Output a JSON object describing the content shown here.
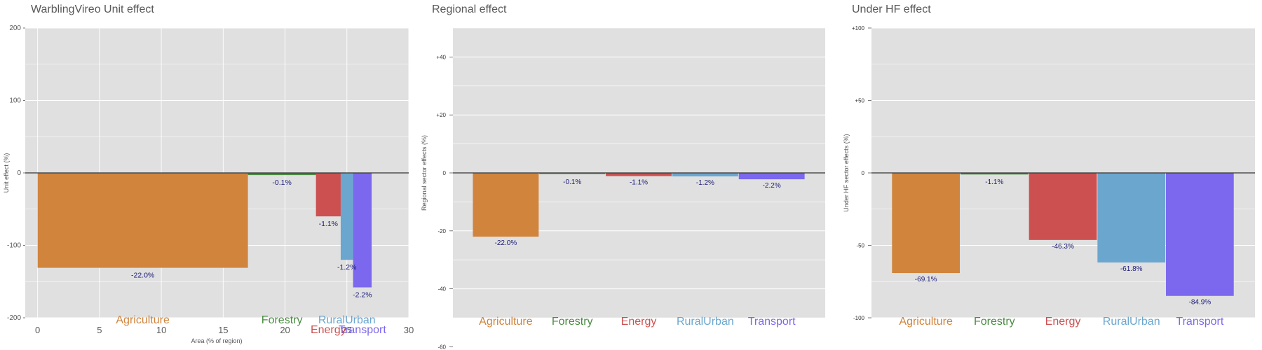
{
  "colors": {
    "Agriculture": "#D0843C",
    "Forestry": "#4A8C42",
    "Energy": "#CC5050",
    "RuralUrban": "#6BA6CF",
    "Transport": "#7B68EE",
    "panel_bg": "#E0E0E0",
    "grid": "#FFFFFF",
    "zero_line": "#333333"
  },
  "chart_data": [
    {
      "type": "bar",
      "variant": "variable-width",
      "title": "WarblingVireo Unit effect",
      "xlabel": "Area (% of region)",
      "ylabel": "Unit effect (%)",
      "xlim": [
        -1,
        30
      ],
      "ylim": [
        -200,
        200
      ],
      "xticks": [
        0,
        5,
        10,
        15,
        20,
        25,
        30
      ],
      "yticks": [
        -200,
        -100,
        0,
        100,
        200
      ],
      "ytick_labels": [
        "-200",
        "-100",
        "0",
        "100",
        "200"
      ],
      "grid": true,
      "bars": [
        {
          "category": "Agriculture",
          "x_start": 0.0,
          "x_end": 17.0,
          "value": -131,
          "label": "-22.0%"
        },
        {
          "category": "Forestry",
          "x_start": 17.0,
          "x_end": 22.5,
          "value": -3,
          "label": "-0.1%"
        },
        {
          "category": "Energy",
          "x_start": 22.5,
          "x_end": 24.5,
          "value": -60,
          "label": "-1.1%"
        },
        {
          "category": "RuralUrban",
          "x_start": 24.5,
          "x_end": 25.5,
          "value": -120,
          "label": "-1.2%"
        },
        {
          "category": "Transport",
          "x_start": 25.5,
          "x_end": 27.0,
          "value": -158,
          "label": "-2.2%"
        }
      ]
    },
    {
      "type": "bar",
      "title": "Regional effect",
      "ylabel": "Regional sector effects (%)",
      "ylim": [
        -50,
        50
      ],
      "yticks": [
        -60,
        -40,
        -20,
        0,
        20,
        40
      ],
      "ytick_labels": [
        "-60",
        "-40",
        "-20",
        "0",
        "+20",
        "+40"
      ],
      "grid": true,
      "categories": [
        "Agriculture",
        "Forestry",
        "Energy",
        "RuralUrban",
        "Transport"
      ],
      "values": [
        -22.0,
        -0.1,
        -1.1,
        -1.2,
        -2.2
      ],
      "labels": [
        "-22.0%",
        "-0.1%",
        "-1.1%",
        "-1.2%",
        "-2.2%"
      ]
    },
    {
      "type": "bar",
      "title": "Under HF effect",
      "ylabel": "Under HF sector effects (%)",
      "ylim": [
        -100,
        100
      ],
      "yticks": [
        -100,
        -50,
        0,
        50,
        100
      ],
      "ytick_labels": [
        "-100",
        "-50",
        "0",
        "+50",
        "+100"
      ],
      "grid": true,
      "categories": [
        "Agriculture",
        "Forestry",
        "Energy",
        "RuralUrban",
        "Transport"
      ],
      "values": [
        -69.1,
        -1.1,
        -46.3,
        -61.8,
        -84.9
      ],
      "labels": [
        "-69.1%",
        "-1.1%",
        "-46.3%",
        "-61.8%",
        "-84.9%"
      ]
    }
  ]
}
